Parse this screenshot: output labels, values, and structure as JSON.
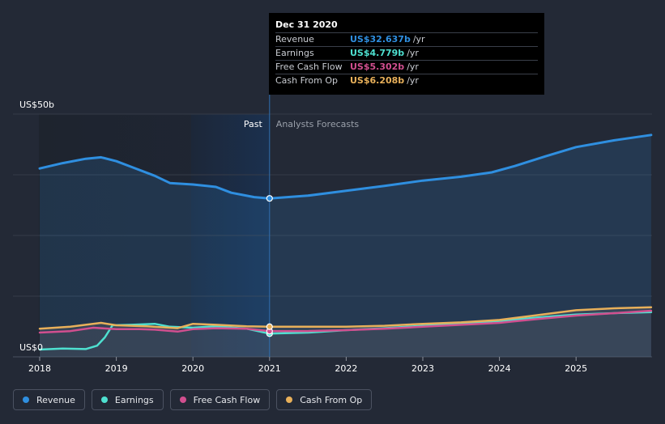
{
  "chart_data": {
    "type": "area",
    "ylim": [
      0,
      50
    ],
    "y_label_top": "US$50b",
    "y_label_bottom": "US$0",
    "x_ticks": [
      "2018",
      "2019",
      "2020",
      "2021",
      "2022",
      "2023",
      "2024",
      "2025"
    ],
    "past_label": "Past",
    "forecast_label": "Analysts Forecasts",
    "divider_x": 2021.0,
    "grid": true,
    "series": [
      {
        "name": "Revenue",
        "color": "#2f8fe0",
        "points": [
          [
            2018.0,
            38.8
          ],
          [
            2018.3,
            39.9
          ],
          [
            2018.6,
            40.8
          ],
          [
            2018.8,
            41.1
          ],
          [
            2019.0,
            40.3
          ],
          [
            2019.2,
            39.1
          ],
          [
            2019.5,
            37.3
          ],
          [
            2019.7,
            35.8
          ],
          [
            2020.0,
            35.5
          ],
          [
            2020.3,
            35.0
          ],
          [
            2020.5,
            33.8
          ],
          [
            2020.8,
            32.9
          ],
          [
            2021.0,
            32.637
          ],
          [
            2021.5,
            33.2
          ],
          [
            2022.0,
            34.2
          ],
          [
            2022.5,
            35.2
          ],
          [
            2023.0,
            36.3
          ],
          [
            2023.5,
            37.1
          ],
          [
            2023.9,
            38.0
          ],
          [
            2024.2,
            39.3
          ],
          [
            2024.6,
            41.3
          ],
          [
            2025.0,
            43.2
          ],
          [
            2025.5,
            44.6
          ],
          [
            2025.98,
            45.7
          ]
        ]
      },
      {
        "name": "Earnings",
        "color": "#4ee0d0",
        "points": [
          [
            2018.0,
            1.5
          ],
          [
            2018.3,
            1.7
          ],
          [
            2018.6,
            1.6
          ],
          [
            2018.75,
            2.3
          ],
          [
            2018.85,
            4.0
          ],
          [
            2018.95,
            6.5
          ],
          [
            2019.2,
            6.6
          ],
          [
            2019.5,
            6.8
          ],
          [
            2019.7,
            6.2
          ],
          [
            2020.0,
            6.0
          ],
          [
            2020.3,
            6.3
          ],
          [
            2020.7,
            5.8
          ],
          [
            2021.0,
            4.779
          ],
          [
            2021.5,
            5.0
          ],
          [
            2022.0,
            5.5
          ],
          [
            2022.5,
            5.9
          ],
          [
            2023.0,
            6.4
          ],
          [
            2023.5,
            6.9
          ],
          [
            2024.0,
            7.4
          ],
          [
            2024.5,
            8.1
          ],
          [
            2025.0,
            8.7
          ],
          [
            2025.5,
            9.0
          ],
          [
            2025.98,
            9.2
          ]
        ]
      },
      {
        "name": "Free Cash Flow",
        "color": "#d14f8f",
        "points": [
          [
            2018.0,
            5.0
          ],
          [
            2018.4,
            5.3
          ],
          [
            2018.7,
            6.0
          ],
          [
            2019.0,
            5.7
          ],
          [
            2019.3,
            5.7
          ],
          [
            2019.5,
            5.6
          ],
          [
            2019.8,
            5.2
          ],
          [
            2020.0,
            5.7
          ],
          [
            2020.3,
            5.9
          ],
          [
            2020.7,
            5.8
          ],
          [
            2021.0,
            5.302
          ],
          [
            2021.5,
            5.3
          ],
          [
            2022.0,
            5.5
          ],
          [
            2022.5,
            5.8
          ],
          [
            2023.0,
            6.2
          ],
          [
            2023.5,
            6.6
          ],
          [
            2024.0,
            7.0
          ],
          [
            2024.5,
            7.8
          ],
          [
            2025.0,
            8.5
          ],
          [
            2025.5,
            9.0
          ],
          [
            2025.98,
            9.5
          ]
        ]
      },
      {
        "name": "Cash From Op",
        "color": "#e8b05a",
        "points": [
          [
            2018.0,
            5.8
          ],
          [
            2018.4,
            6.2
          ],
          [
            2018.8,
            7.0
          ],
          [
            2019.0,
            6.5
          ],
          [
            2019.4,
            6.3
          ],
          [
            2019.8,
            5.9
          ],
          [
            2020.0,
            6.8
          ],
          [
            2020.3,
            6.6
          ],
          [
            2020.7,
            6.3
          ],
          [
            2021.0,
            6.208
          ],
          [
            2021.5,
            6.2
          ],
          [
            2022.0,
            6.2
          ],
          [
            2022.5,
            6.4
          ],
          [
            2023.0,
            6.8
          ],
          [
            2023.5,
            7.1
          ],
          [
            2024.0,
            7.6
          ],
          [
            2024.4,
            8.4
          ],
          [
            2025.0,
            9.6
          ],
          [
            2025.5,
            10.0
          ],
          [
            2025.98,
            10.2
          ]
        ]
      }
    ],
    "tooltip": {
      "date": "Dec 31 2020",
      "rows": [
        {
          "label": "Revenue",
          "value": "US$32.637b",
          "unit": "/yr",
          "color": "#2f8fe0"
        },
        {
          "label": "Earnings",
          "value": "US$4.779b",
          "unit": "/yr",
          "color": "#4ee0d0"
        },
        {
          "label": "Free Cash Flow",
          "value": "US$5.302b",
          "unit": "/yr",
          "color": "#d14f8f"
        },
        {
          "label": "Cash From Op",
          "value": "US$6.208b",
          "unit": "/yr",
          "color": "#e8b05a"
        }
      ]
    }
  },
  "legend": [
    {
      "label": "Revenue",
      "color": "#2f8fe0"
    },
    {
      "label": "Earnings",
      "color": "#4ee0d0"
    },
    {
      "label": "Free Cash Flow",
      "color": "#d14f8f"
    },
    {
      "label": "Cash From Op",
      "color": "#e8b05a"
    }
  ]
}
